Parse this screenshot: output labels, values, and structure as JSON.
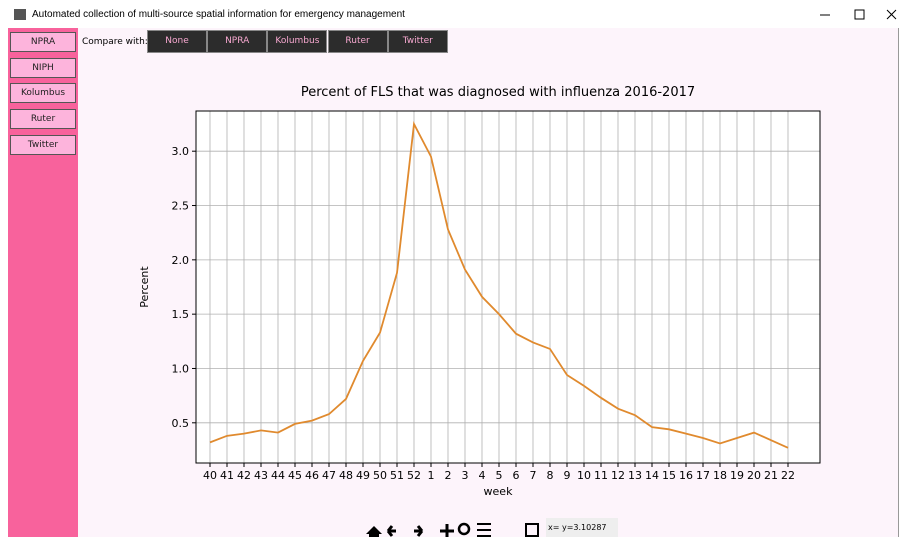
{
  "window": {
    "title": "Automated collection of multi-source spatial information for emergency management"
  },
  "sidebar": {
    "buttons": [
      "NPRA",
      "NIPH",
      "Kolumbus",
      "Ruter",
      "Twitter"
    ]
  },
  "compare": {
    "label": "Compare with:",
    "buttons": [
      "None",
      "NPRA",
      "Kolumbus",
      "Ruter",
      "Twitter"
    ]
  },
  "chart_data": {
    "type": "line",
    "title": "Percent of FLS that was diagnosed with influenza 2016-2017",
    "xlabel": "week",
    "ylabel": "Percent",
    "categories": [
      "40",
      "41",
      "42",
      "43",
      "44",
      "45",
      "46",
      "47",
      "48",
      "49",
      "50",
      "51",
      "52",
      "1",
      "2",
      "3",
      "4",
      "5",
      "6",
      "7",
      "8",
      "9",
      "10",
      "11",
      "12",
      "13",
      "14",
      "15",
      "16",
      "17",
      "18",
      "19",
      "20",
      "21",
      "22"
    ],
    "values": [
      0.32,
      0.38,
      0.4,
      0.43,
      0.41,
      0.49,
      0.52,
      0.58,
      0.72,
      1.07,
      1.33,
      1.88,
      3.25,
      2.95,
      2.28,
      1.91,
      1.66,
      1.5,
      1.32,
      1.24,
      1.18,
      0.94,
      0.84,
      0.73,
      0.63,
      0.57,
      0.46,
      0.44,
      0.4,
      0.36,
      0.31,
      0.36,
      0.41,
      0.34,
      0.27
    ],
    "color": "#e08a2e",
    "ylim": [
      0.13,
      3.37
    ],
    "yticks": [
      0.5,
      {
        "value": 1,
        "label": "1.0"
      },
      1.5,
      {
        "value": 2,
        "label": "2.0"
      },
      2.5,
      {
        "value": 3,
        "label": "3.0"
      }
    ],
    "grid": true
  },
  "toolbar": {
    "status": "x= y=3.10287"
  }
}
